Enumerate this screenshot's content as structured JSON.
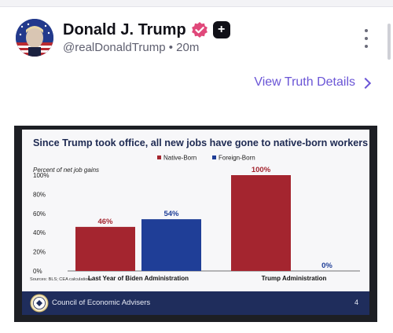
{
  "post": {
    "display_name": "Donald J. Trump",
    "handle_time": "@realDonaldTrump • 20m",
    "view_details": "View Truth Details",
    "plus_symbol": "+"
  },
  "colors": {
    "accent": "#6a55d6",
    "verified": "#e0487a",
    "native_born": "#a4252f",
    "foreign_born": "#1f3e97"
  },
  "icons": [
    "verified-badge-icon",
    "plus-badge-icon",
    "more-vertical-icon",
    "chevron-right-icon",
    "cea-seal-icon"
  ],
  "chart_data": {
    "type": "bar",
    "title": "Since Trump took office, all new jobs have gone to native-born workers",
    "ylabel": "Percent of net job gains",
    "categories": [
      "Last Year of Biden Administration",
      "Trump Administration"
    ],
    "series": [
      {
        "name": "Native-Born",
        "values": [
          46,
          100
        ],
        "labels": [
          "46%",
          "100%"
        ]
      },
      {
        "name": "Foreign-Born",
        "values": [
          54,
          0
        ],
        "labels": [
          "54%",
          "0%"
        ]
      }
    ],
    "yticks": [
      "0%",
      "20%",
      "40%",
      "60%",
      "80%",
      "100%"
    ],
    "ylim": [
      0,
      100
    ],
    "legend": "top-center",
    "grid": false,
    "sources": "Sources: BLS; CEA calculations.",
    "footer_org": "Council of Economic Advisers",
    "page_number": "4"
  }
}
